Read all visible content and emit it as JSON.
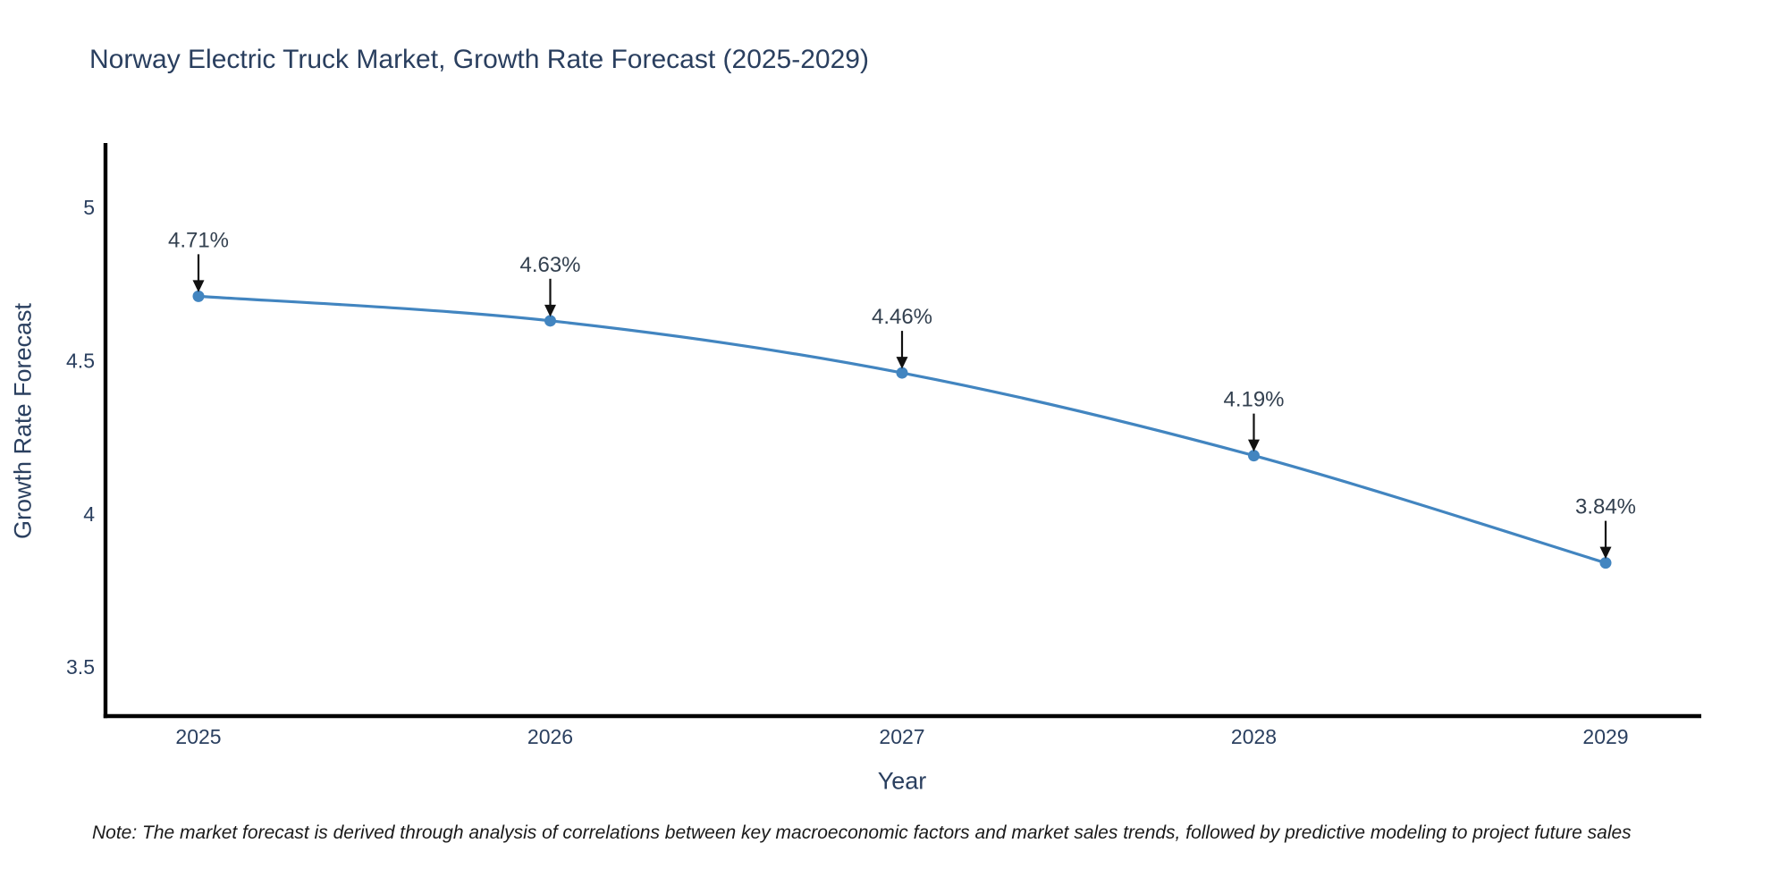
{
  "footnote": "Note: The market forecast is derived through analysis of correlations between key macroeconomic factors and market sales trends, followed by predictive modeling to project future sales",
  "chart_data": {
    "type": "line",
    "title": "Norway Electric Truck Market, Growth Rate Forecast (2025-2029)",
    "xlabel": "Year",
    "ylabel": "Growth Rate Forecast",
    "categories": [
      "2025",
      "2026",
      "2027",
      "2028",
      "2029"
    ],
    "series": [
      {
        "name": "Growth Rate Forecast",
        "values": [
          4.71,
          4.63,
          4.46,
          4.19,
          3.84
        ],
        "point_labels": [
          "4.71%",
          "4.63%",
          "4.46%",
          "4.19%",
          "3.84%"
        ]
      }
    ],
    "yticks": [
      "3.5",
      "4",
      "4.5",
      "5"
    ],
    "ylim": [
      3.34,
      5.21
    ],
    "grid": false,
    "legend": "none",
    "line_shape": "spline",
    "markers": true,
    "colors": {
      "line": "#4285c0",
      "marker": "#4285c0",
      "axis_line": "#000000",
      "tick_label": "#2a3f5f",
      "title_text": "#2a3f5f",
      "annotation_text": "#33404f",
      "arrow": "#111111"
    }
  }
}
